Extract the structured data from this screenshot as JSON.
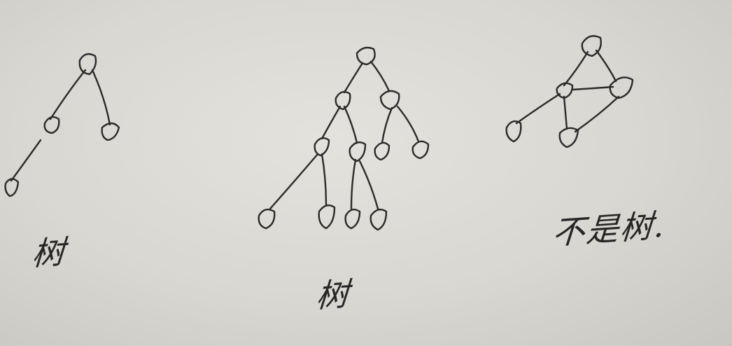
{
  "diagrams": [
    {
      "id": "left",
      "caption": "树"
    },
    {
      "id": "middle",
      "caption": "树"
    },
    {
      "id": "right",
      "caption": "不是树."
    }
  ]
}
